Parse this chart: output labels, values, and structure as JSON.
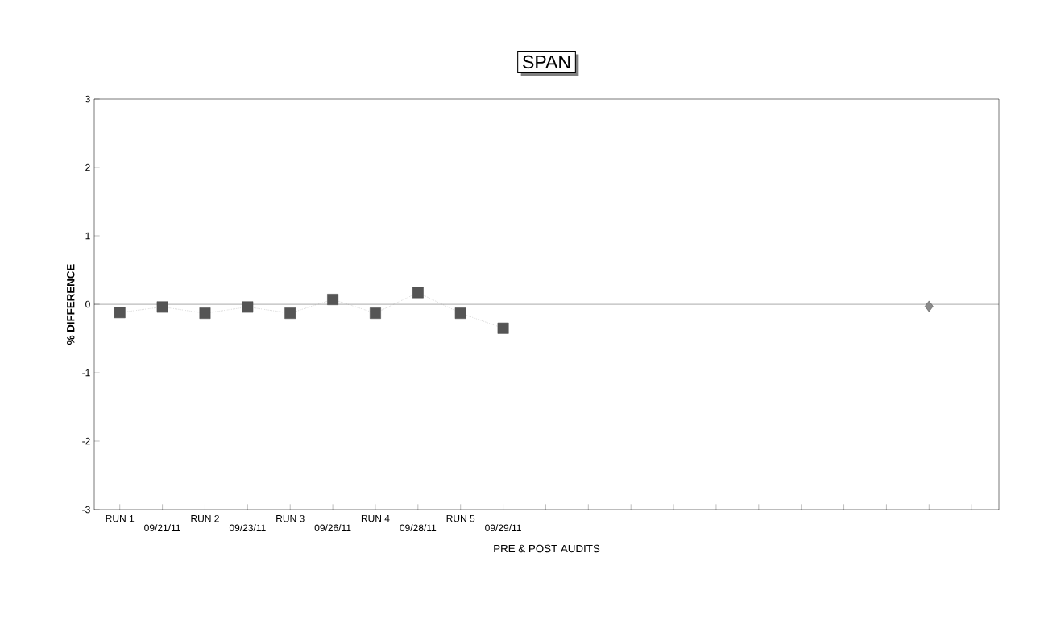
{
  "chart_data": {
    "type": "line",
    "title": "SPAN",
    "xlabel": "PRE & POST AUDITS",
    "ylabel": "% DIFFERENCE",
    "categories": [
      "RUN 1",
      "09/21/11",
      "RUN 2",
      "09/23/11",
      "RUN 3",
      "09/26/11",
      "RUN 4",
      "09/28/11",
      "RUN 5",
      "09/29/11",
      null,
      null,
      null,
      null,
      null,
      null,
      null,
      null,
      null,
      null,
      null
    ],
    "series": [
      {
        "color": "#555555",
        "marker": "square",
        "line_style": "dotted",
        "values": [
          -0.12,
          -0.04,
          -0.13,
          -0.04,
          -0.13,
          0.07,
          -0.13,
          0.17,
          -0.13,
          -0.35,
          null,
          null,
          null,
          null,
          null,
          null,
          null,
          null,
          null,
          null,
          null
        ]
      },
      {
        "type": "scatter",
        "color": "#8a8a8a",
        "marker": "diamond",
        "values": [
          null,
          null,
          null,
          null,
          null,
          null,
          null,
          null,
          null,
          null,
          null,
          null,
          null,
          null,
          null,
          null,
          null,
          null,
          null,
          -0.03,
          null
        ]
      }
    ],
    "ylim": [
      -3,
      3
    ],
    "yticks": [
      -3,
      -2,
      -1,
      0,
      1,
      2,
      3
    ],
    "ref_lines": [
      {
        "axis": "y",
        "value": 0
      }
    ],
    "grid": false
  }
}
